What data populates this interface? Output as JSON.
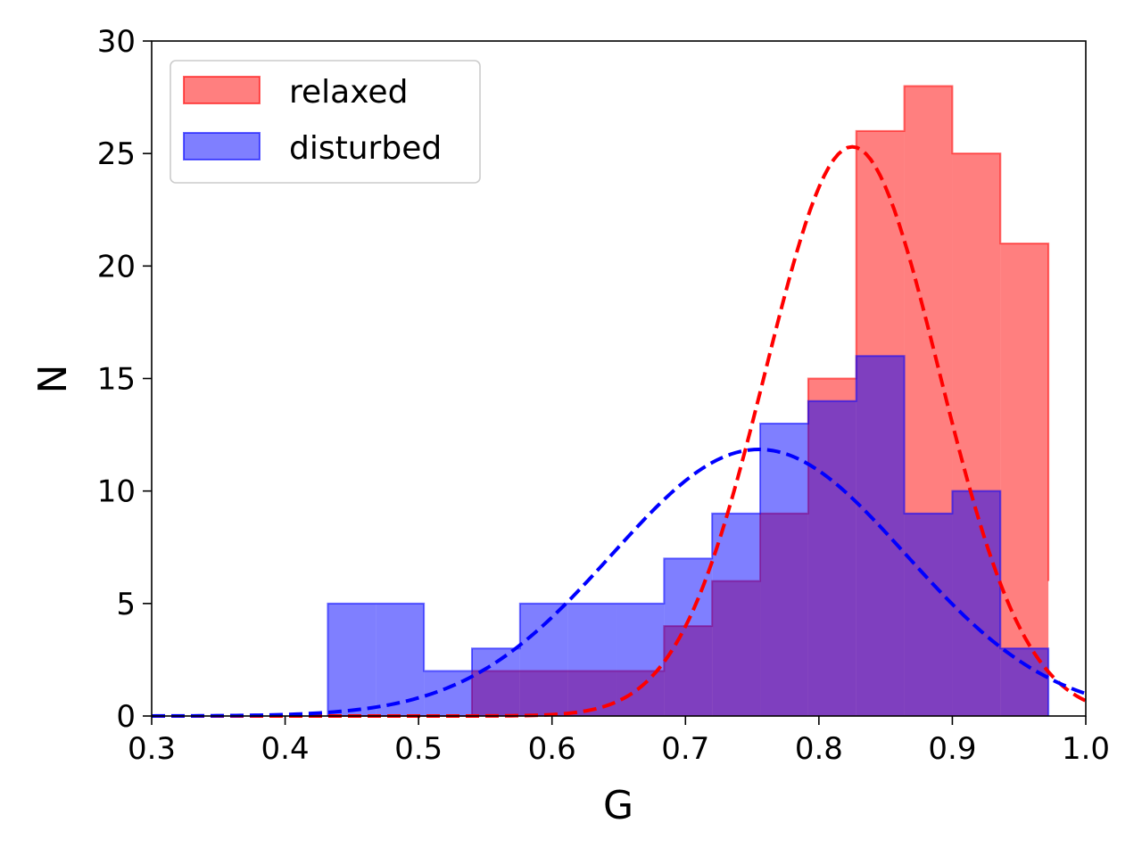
{
  "chart_data": {
    "type": "bar",
    "title": "",
    "xlabel": "G",
    "ylabel": "N",
    "xlim": [
      0.3,
      1.0
    ],
    "ylim": [
      0,
      30
    ],
    "xticks": [
      "0.3",
      "0.4",
      "0.5",
      "0.6",
      "0.7",
      "0.8",
      "0.9",
      "1.0"
    ],
    "yticks": [
      "0",
      "5",
      "10",
      "15",
      "20",
      "25",
      "30"
    ],
    "grid": false,
    "legend_position": "top-left",
    "bin_edges": [
      0.432,
      0.468,
      0.504,
      0.54,
      0.576,
      0.612,
      0.648,
      0.684,
      0.72,
      0.756,
      0.792,
      0.828,
      0.864,
      0.9,
      0.936,
      0.972
    ],
    "series": [
      {
        "name": "relaxed",
        "color": "#ff0000",
        "fill_alpha": 0.5,
        "values": [
          0,
          0,
          0,
          2,
          2,
          2,
          2,
          4,
          6,
          9,
          15,
          26,
          28,
          25,
          21,
          6
        ]
      },
      {
        "name": "disturbed",
        "color": "#0000ff",
        "fill_alpha": 0.5,
        "values": [
          5,
          5,
          2,
          3,
          5,
          5,
          5,
          7,
          9,
          13,
          14,
          16,
          9,
          10,
          3,
          0
        ]
      }
    ],
    "fit_curves": [
      {
        "series": "relaxed",
        "color": "#ff0000",
        "style": "dashed",
        "mean": 0.825,
        "sigma": 0.065,
        "amplitude": 25.3
      },
      {
        "series": "disturbed",
        "color": "#0000ff",
        "style": "dashed",
        "mean": 0.755,
        "sigma": 0.11,
        "amplitude": 11.85
      }
    ]
  }
}
